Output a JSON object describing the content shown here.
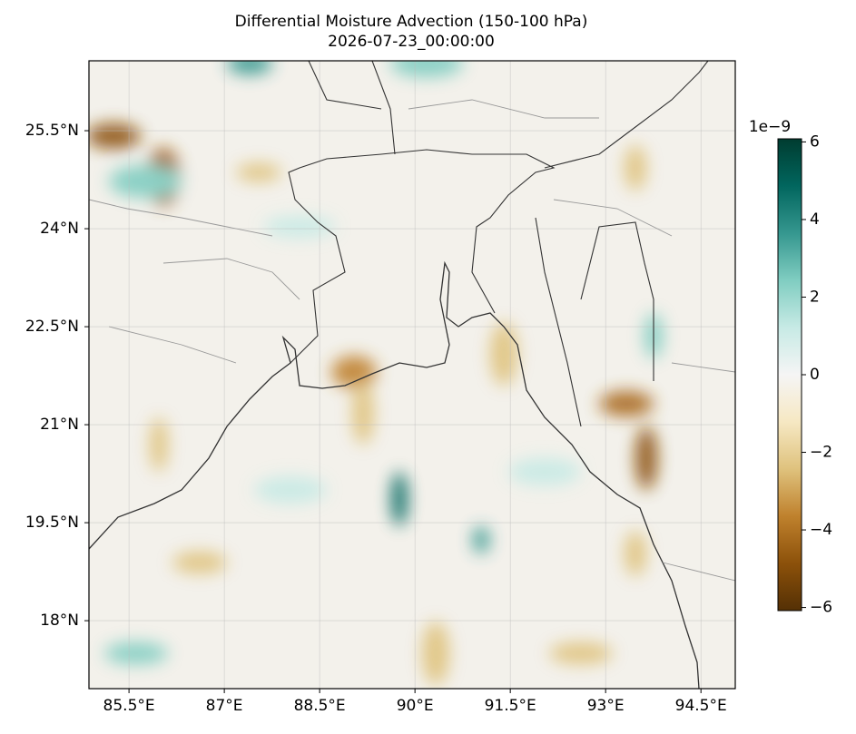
{
  "map": {
    "title": "Differential Moisture Advection (150-100 hPa)",
    "subtitle": "2026-07-23_00:00:00",
    "lonlim": [
      84.87,
      95.04
    ],
    "latlim": [
      16.96,
      26.57
    ],
    "lon_ticks": [
      {
        "value": 85.5,
        "label": "85.5°E"
      },
      {
        "value": 87,
        "label": "87°E"
      },
      {
        "value": 88.5,
        "label": "88.5°E"
      },
      {
        "value": 90,
        "label": "90°E"
      },
      {
        "value": 91.5,
        "label": "91.5°E"
      },
      {
        "value": 93,
        "label": "93°E"
      },
      {
        "value": 94.5,
        "label": "94.5°E"
      }
    ],
    "lat_ticks": [
      {
        "value": 18,
        "label": "18°N"
      },
      {
        "value": 19.5,
        "label": "19.5°N"
      },
      {
        "value": 21,
        "label": "21°N"
      },
      {
        "value": 22.5,
        "label": "22.5°N"
      },
      {
        "value": 24,
        "label": "24°N"
      },
      {
        "value": 25.5,
        "label": "25.5°N"
      }
    ],
    "grid": true,
    "colorbar": {
      "offset_label": "1e−9",
      "clim": [
        -6.08,
        6.08
      ],
      "ticks": [
        {
          "value": -6,
          "label": "−6"
        },
        {
          "value": -4,
          "label": "−4"
        },
        {
          "value": -2,
          "label": "−2"
        },
        0,
        2,
        4,
        6
      ],
      "colormap": [
        "#543005",
        "#8c510a",
        "#bf812d",
        "#dfc27d",
        "#f6e8c3",
        "#f5f5f5",
        "#c7eae5",
        "#80cdc1",
        "#35978f",
        "#01665e",
        "#003c30"
      ]
    }
  }
}
